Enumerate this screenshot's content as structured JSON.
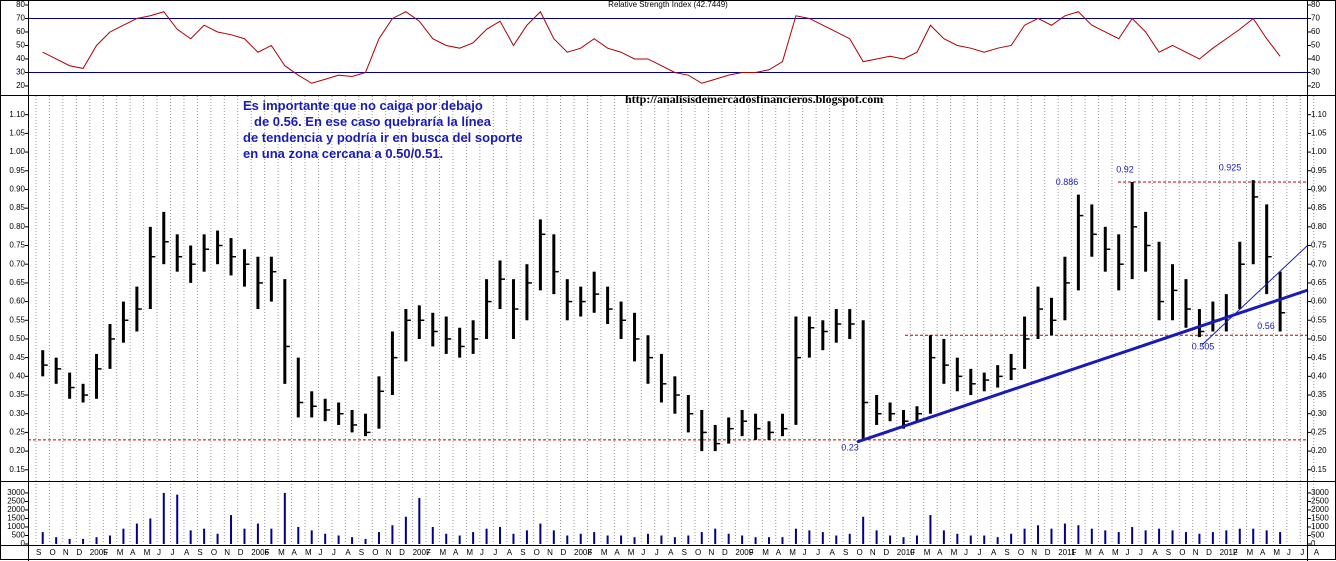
{
  "chart_data": [
    {
      "type": "line",
      "title": "Relative Strength Index (42.7449)",
      "color": "#b00000",
      "values": [
        45,
        40,
        35,
        33,
        50,
        60,
        65,
        70,
        72,
        75,
        62,
        55,
        65,
        60,
        58,
        55,
        45,
        50,
        35,
        28,
        22,
        25,
        28,
        27,
        30,
        55,
        70,
        75,
        68,
        55,
        50,
        48,
        52,
        62,
        68,
        50,
        65,
        75,
        55,
        45,
        48,
        55,
        48,
        45,
        40,
        40,
        35,
        30,
        28,
        22,
        25,
        28,
        30,
        30,
        32,
        38,
        72,
        70,
        65,
        60,
        55,
        38,
        40,
        42,
        40,
        45,
        65,
        55,
        50,
        48,
        45,
        48,
        50,
        65,
        70,
        65,
        72,
        75,
        65,
        60,
        55,
        70,
        60,
        45,
        50,
        45,
        40,
        48,
        55,
        62,
        70,
        55,
        42,
        null,
        null,
        null
      ],
      "levels": [
        70,
        30
      ],
      "levels_color": "#00008b",
      "ylim": [
        13.3,
        83.7
      ],
      "yticks": [
        20,
        30,
        40,
        50,
        60,
        70,
        80
      ]
    },
    {
      "type": "hlc",
      "color": "#000000",
      "high": [
        0.47,
        0.45,
        0.41,
        0.38,
        0.46,
        0.54,
        0.6,
        0.64,
        0.8,
        0.84,
        0.78,
        0.75,
        0.78,
        0.79,
        0.77,
        0.74,
        0.72,
        0.72,
        0.66,
        0.45,
        0.36,
        0.34,
        0.33,
        0.31,
        0.3,
        0.4,
        0.52,
        0.58,
        0.59,
        0.57,
        0.56,
        0.53,
        0.55,
        0.66,
        0.71,
        0.66,
        0.7,
        0.82,
        0.78,
        0.66,
        0.64,
        0.68,
        0.64,
        0.6,
        0.57,
        0.51,
        0.46,
        0.4,
        0.35,
        0.31,
        0.27,
        0.29,
        0.31,
        0.3,
        0.28,
        0.3,
        0.56,
        0.56,
        0.55,
        0.58,
        0.58,
        0.55,
        0.35,
        0.33,
        0.31,
        0.32,
        0.51,
        0.5,
        0.45,
        0.42,
        0.41,
        0.43,
        0.46,
        0.56,
        0.64,
        0.61,
        0.72,
        0.886,
        0.86,
        0.8,
        0.78,
        0.92,
        0.84,
        0.76,
        0.7,
        0.66,
        0.58,
        0.6,
        0.62,
        0.76,
        0.925,
        0.86,
        0.68,
        null,
        null,
        null
      ],
      "low": [
        0.4,
        0.38,
        0.34,
        0.33,
        0.34,
        0.42,
        0.49,
        0.52,
        0.58,
        0.7,
        0.68,
        0.65,
        0.68,
        0.7,
        0.67,
        0.64,
        0.58,
        0.6,
        0.38,
        0.29,
        0.29,
        0.28,
        0.27,
        0.25,
        0.24,
        0.26,
        0.35,
        0.44,
        0.5,
        0.48,
        0.46,
        0.45,
        0.46,
        0.5,
        0.58,
        0.5,
        0.55,
        0.63,
        0.62,
        0.55,
        0.56,
        0.57,
        0.54,
        0.5,
        0.44,
        0.38,
        0.33,
        0.3,
        0.25,
        0.2,
        0.2,
        0.22,
        0.24,
        0.23,
        0.23,
        0.24,
        0.27,
        0.45,
        0.47,
        0.49,
        0.5,
        0.23,
        0.27,
        0.28,
        0.26,
        0.28,
        0.3,
        0.38,
        0.36,
        0.35,
        0.36,
        0.37,
        0.39,
        0.42,
        0.5,
        0.51,
        0.55,
        0.63,
        0.72,
        0.68,
        0.63,
        0.66,
        0.68,
        0.55,
        0.55,
        0.53,
        0.505,
        0.52,
        0.52,
        0.58,
        0.7,
        0.62,
        0.52,
        null,
        null,
        null
      ],
      "close": [
        0.43,
        0.42,
        0.37,
        0.35,
        0.42,
        0.5,
        0.55,
        0.58,
        0.72,
        0.76,
        0.72,
        0.7,
        0.74,
        0.75,
        0.72,
        0.7,
        0.65,
        0.68,
        0.48,
        0.33,
        0.32,
        0.31,
        0.3,
        0.27,
        0.25,
        0.36,
        0.45,
        0.55,
        0.55,
        0.52,
        0.5,
        0.48,
        0.5,
        0.6,
        0.66,
        0.58,
        0.65,
        0.78,
        0.68,
        0.6,
        0.6,
        0.62,
        0.58,
        0.55,
        0.5,
        0.45,
        0.38,
        0.35,
        0.3,
        0.25,
        0.22,
        0.26,
        0.28,
        0.26,
        0.25,
        0.26,
        0.45,
        0.53,
        0.52,
        0.54,
        0.54,
        0.33,
        0.3,
        0.3,
        0.28,
        0.3,
        0.45,
        0.43,
        0.4,
        0.38,
        0.39,
        0.4,
        0.42,
        0.5,
        0.58,
        0.55,
        0.65,
        0.83,
        0.78,
        0.74,
        0.7,
        0.8,
        0.75,
        0.6,
        0.63,
        0.58,
        0.52,
        0.55,
        0.56,
        0.7,
        0.88,
        0.72,
        0.57,
        null,
        null,
        null
      ],
      "ylim": [
        0.12,
        1.15
      ],
      "yticks": [
        0.15,
        {
          "value": 0.2,
          "label": "0.20"
        },
        0.25,
        {
          "value": 0.3,
          "label": "0.30"
        },
        0.35,
        {
          "value": 0.4,
          "label": "0.40"
        },
        0.45,
        {
          "value": 0.5,
          "label": "0.50"
        },
        0.55,
        {
          "value": 0.6,
          "label": "0.60"
        },
        0.65,
        {
          "value": 0.7,
          "label": "0.70"
        },
        0.75,
        {
          "value": 0.8,
          "label": "0.80"
        },
        0.85,
        {
          "value": 0.9,
          "label": "0.90"
        },
        0.95,
        {
          "value": 1,
          "label": "1.00"
        },
        1.05,
        {
          "value": 1.1,
          "label": "1.10"
        }
      ],
      "grid": true,
      "levels": [
        0.23,
        0.51,
        0.92
      ],
      "levels_color": "#c00000",
      "annotations": [
        0.886,
        0.92,
        0.925,
        0.505,
        0.56,
        0.23
      ],
      "note_lines": [
        "Es importante que no caiga por debajo",
        "de 0.56. En ese caso quebraría la línea",
        "de tendencia y podría ir en busca del soporte",
        "en una zona cercana a 0.50/0.51."
      ],
      "url": "http://analisisdemercadosfinancieros.blogspot.com"
    },
    {
      "type": "bar",
      "color": "#00008b",
      "categories": [
        "S",
        "O",
        "N",
        "D",
        "2005",
        "F",
        "M",
        "A",
        "M",
        "J",
        "J",
        "A",
        "S",
        "O",
        "N",
        "D",
        "2006",
        "F",
        "M",
        "A",
        "M",
        "J",
        "J",
        "A",
        "S",
        "O",
        "N",
        "D",
        "2007",
        "F",
        "M",
        "A",
        "M",
        "J",
        "J",
        "A",
        "S",
        "O",
        "N",
        "D",
        "2008",
        "F",
        "M",
        "A",
        "M",
        "J",
        "J",
        "A",
        "S",
        "O",
        "N",
        "D",
        "2009",
        "F",
        "M",
        "A",
        "M",
        "J",
        "J",
        "A",
        "S",
        "O",
        "N",
        "D",
        "2010",
        "F",
        "M",
        "A",
        "M",
        "J",
        "J",
        "A",
        "S",
        "O",
        "N",
        "D",
        "2011",
        "F",
        "M",
        "A",
        "M",
        "J",
        "J",
        "A",
        "S",
        "O",
        "N",
        "D",
        "2012",
        "F",
        "M",
        "A",
        "M",
        "J",
        "J",
        "A"
      ],
      "values": [
        700,
        400,
        300,
        300,
        400,
        500,
        900,
        1200,
        1500,
        3000,
        2900,
        800,
        900,
        600,
        1700,
        900,
        1200,
        900,
        3000,
        1000,
        800,
        600,
        500,
        400,
        300,
        700,
        1100,
        1600,
        2700,
        1000,
        600,
        500,
        700,
        900,
        1000,
        600,
        800,
        1200,
        800,
        500,
        600,
        700,
        500,
        500,
        400,
        600,
        500,
        400,
        500,
        700,
        900,
        600,
        500,
        400,
        400,
        400,
        900,
        800,
        700,
        500,
        600,
        1600,
        800,
        500,
        400,
        500,
        1700,
        800,
        600,
        500,
        500,
        400,
        600,
        900,
        1100,
        900,
        1200,
        1100,
        900,
        800,
        700,
        1000,
        800,
        900,
        800,
        700,
        600,
        700,
        800,
        900,
        900,
        800,
        700,
        null,
        null,
        null
      ],
      "ylim": [
        0,
        3700
      ],
      "yticks": [
        0,
        500,
        1000,
        1500,
        2000,
        2500,
        3000
      ],
      "grid": true
    }
  ]
}
